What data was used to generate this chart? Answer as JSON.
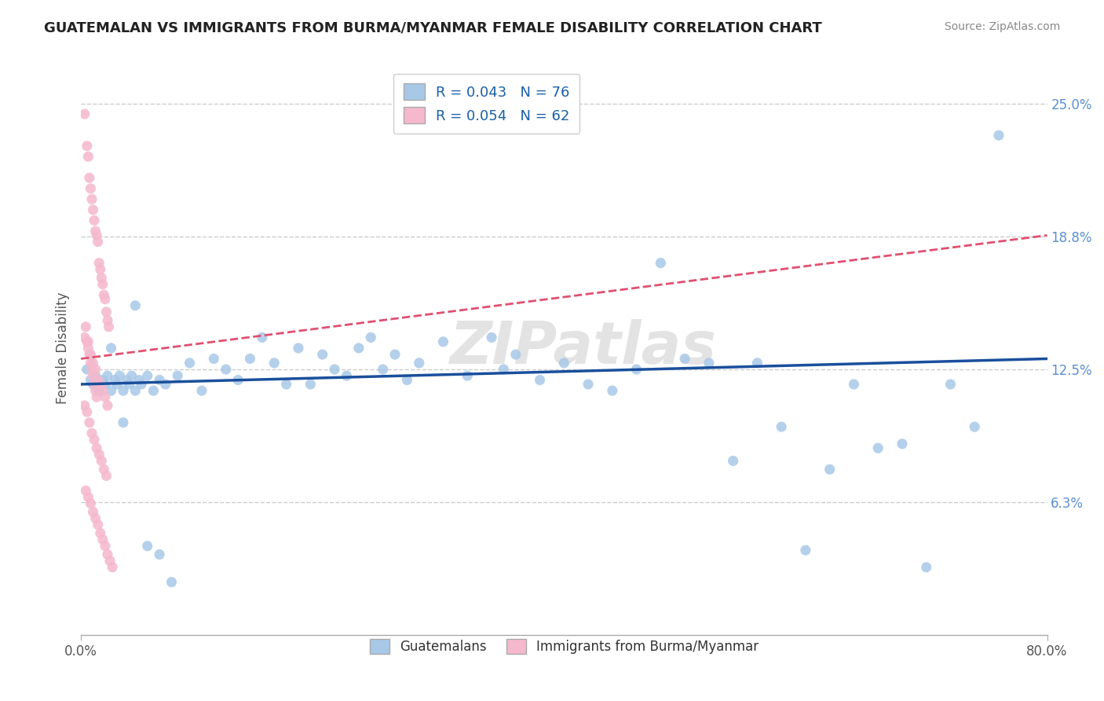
{
  "title": "GUATEMALAN VS IMMIGRANTS FROM BURMA/MYANMAR FEMALE DISABILITY CORRELATION CHART",
  "source": "Source: ZipAtlas.com",
  "ylabel": "Female Disability",
  "ytick_vals": [
    0.0625,
    0.125,
    0.1875,
    0.25
  ],
  "ytick_labels": [
    "6.3%",
    "12.5%",
    "18.8%",
    "25.0%"
  ],
  "xlim": [
    0.0,
    0.8
  ],
  "ylim": [
    0.0,
    0.27
  ],
  "blue_R": 0.043,
  "blue_N": 76,
  "pink_R": 0.054,
  "pink_N": 62,
  "blue_color": "#a8c8e8",
  "pink_color": "#f5b8cc",
  "blue_line_color": "#1a4f9c",
  "pink_line_color": "#e05070",
  "watermark": "ZIPatlas",
  "legend_labels": [
    "Guatemalans",
    "Immigrants from Burma/Myanmar"
  ],
  "blue_scatter_x": [
    0.005,
    0.008,
    0.01,
    0.012,
    0.015,
    0.018,
    0.02,
    0.022,
    0.025,
    0.028,
    0.03,
    0.032,
    0.035,
    0.038,
    0.04,
    0.042,
    0.045,
    0.048,
    0.05,
    0.055,
    0.06,
    0.065,
    0.07,
    0.08,
    0.09,
    0.1,
    0.11,
    0.12,
    0.13,
    0.14,
    0.15,
    0.16,
    0.17,
    0.18,
    0.19,
    0.2,
    0.21,
    0.22,
    0.23,
    0.24,
    0.25,
    0.26,
    0.27,
    0.28,
    0.3,
    0.32,
    0.34,
    0.35,
    0.36,
    0.38,
    0.4,
    0.42,
    0.44,
    0.46,
    0.48,
    0.5,
    0.52,
    0.54,
    0.56,
    0.58,
    0.6,
    0.62,
    0.64,
    0.66,
    0.68,
    0.7,
    0.72,
    0.74,
    0.76,
    0.015,
    0.025,
    0.035,
    0.045,
    0.055,
    0.065,
    0.075
  ],
  "blue_scatter_y": [
    0.125,
    0.12,
    0.118,
    0.122,
    0.115,
    0.12,
    0.118,
    0.122,
    0.115,
    0.12,
    0.118,
    0.122,
    0.115,
    0.12,
    0.118,
    0.122,
    0.115,
    0.12,
    0.118,
    0.122,
    0.115,
    0.12,
    0.118,
    0.122,
    0.128,
    0.115,
    0.13,
    0.125,
    0.12,
    0.13,
    0.14,
    0.128,
    0.118,
    0.135,
    0.118,
    0.132,
    0.125,
    0.122,
    0.135,
    0.14,
    0.125,
    0.132,
    0.12,
    0.128,
    0.138,
    0.122,
    0.14,
    0.125,
    0.132,
    0.12,
    0.128,
    0.118,
    0.115,
    0.125,
    0.175,
    0.13,
    0.128,
    0.082,
    0.128,
    0.098,
    0.04,
    0.078,
    0.118,
    0.088,
    0.09,
    0.032,
    0.118,
    0.098,
    0.235,
    0.115,
    0.135,
    0.1,
    0.155,
    0.042,
    0.038,
    0.025
  ],
  "pink_scatter_x": [
    0.003,
    0.005,
    0.006,
    0.007,
    0.008,
    0.009,
    0.01,
    0.011,
    0.012,
    0.013,
    0.014,
    0.015,
    0.016,
    0.017,
    0.018,
    0.019,
    0.02,
    0.021,
    0.022,
    0.023,
    0.003,
    0.005,
    0.006,
    0.007,
    0.008,
    0.009,
    0.01,
    0.011,
    0.012,
    0.013,
    0.004,
    0.006,
    0.008,
    0.01,
    0.012,
    0.014,
    0.016,
    0.018,
    0.02,
    0.022,
    0.003,
    0.005,
    0.007,
    0.009,
    0.011,
    0.013,
    0.015,
    0.017,
    0.019,
    0.021,
    0.004,
    0.006,
    0.008,
    0.01,
    0.012,
    0.014,
    0.016,
    0.018,
    0.02,
    0.022,
    0.024,
    0.026
  ],
  "pink_scatter_y": [
    0.245,
    0.23,
    0.225,
    0.215,
    0.21,
    0.205,
    0.2,
    0.195,
    0.19,
    0.188,
    0.185,
    0.175,
    0.172,
    0.168,
    0.165,
    0.16,
    0.158,
    0.152,
    0.148,
    0.145,
    0.14,
    0.138,
    0.135,
    0.132,
    0.128,
    0.125,
    0.122,
    0.118,
    0.115,
    0.112,
    0.145,
    0.138,
    0.132,
    0.128,
    0.125,
    0.12,
    0.118,
    0.115,
    0.112,
    0.108,
    0.108,
    0.105,
    0.1,
    0.095,
    0.092,
    0.088,
    0.085,
    0.082,
    0.078,
    0.075,
    0.068,
    0.065,
    0.062,
    0.058,
    0.055,
    0.052,
    0.048,
    0.045,
    0.042,
    0.038,
    0.035,
    0.032
  ],
  "blue_trend_x": [
    0.0,
    0.8
  ],
  "blue_trend_y": [
    0.118,
    0.13
  ],
  "pink_trend_x": [
    0.0,
    0.8
  ],
  "pink_trend_y": [
    0.13,
    0.188
  ]
}
